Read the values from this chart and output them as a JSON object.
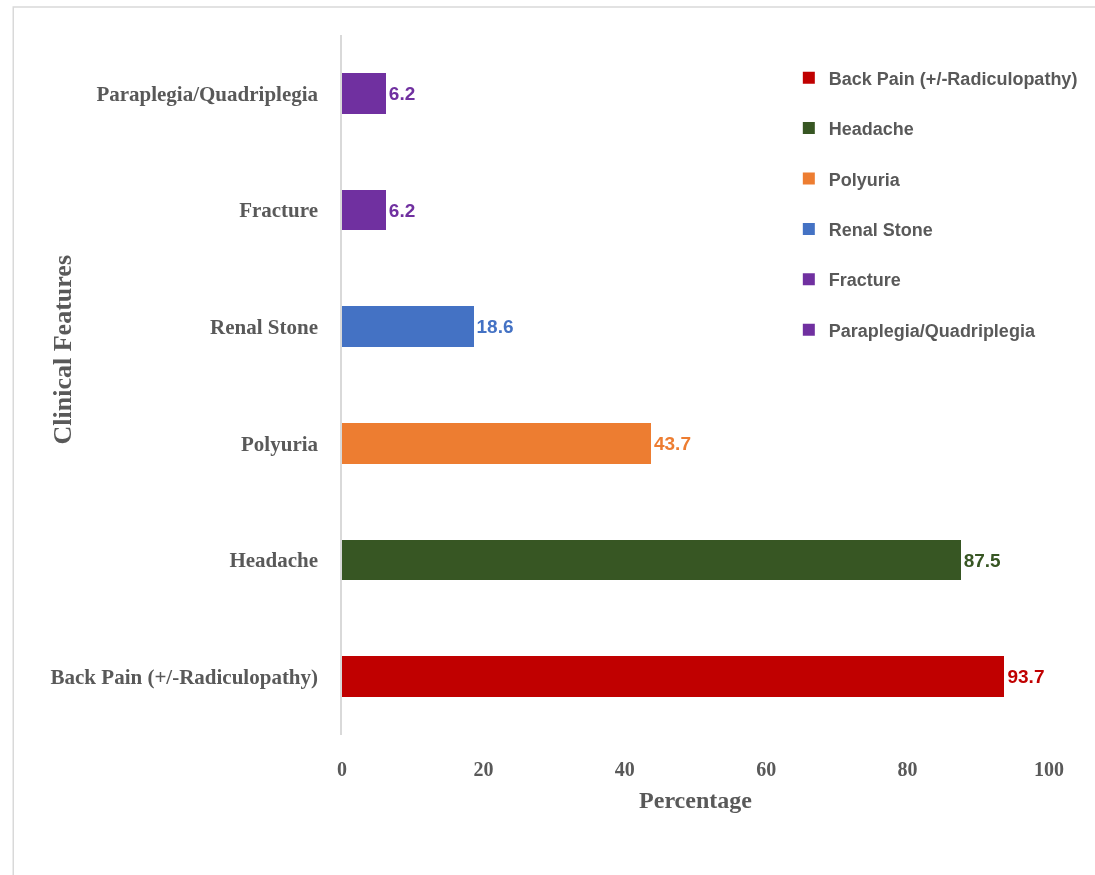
{
  "chart_data": {
    "type": "bar",
    "orientation": "horizontal",
    "stacked": true,
    "xlabel": "Percentage",
    "ylabel": "Clinical Features",
    "categories": [
      "Paraplegia/Quadriplegia",
      "Fracture",
      "Renal Stone",
      "Polyuria",
      "Headache",
      "Back Pain (+/-Radiculopathy)"
    ],
    "series": [
      {
        "name": "Back Pain (+/-Radiculopathy)",
        "color": "#c00000",
        "values": [
          null,
          null,
          null,
          null,
          null,
          93.7
        ]
      },
      {
        "name": "Headache",
        "color": "#375623",
        "values": [
          null,
          null,
          null,
          null,
          87.5,
          null
        ]
      },
      {
        "name": "Polyuria",
        "color": "#ed7d31",
        "values": [
          null,
          null,
          null,
          43.7,
          null,
          null
        ]
      },
      {
        "name": "Renal Stone",
        "color": "#4472c4",
        "values": [
          null,
          null,
          18.6,
          null,
          null,
          null
        ]
      },
      {
        "name": "Fracture",
        "color": "#7030a0",
        "values": [
          null,
          6.2,
          null,
          null,
          null,
          null
        ]
      },
      {
        "name": "Paraplegia/Quadriplegia",
        "color": "#7030a0",
        "values": [
          6.2,
          null,
          null,
          null,
          null,
          null
        ]
      }
    ],
    "xlim": [
      0,
      100
    ],
    "xticks": [
      0,
      20,
      40,
      60,
      80,
      100
    ],
    "data_labels": true,
    "legend": "top right"
  }
}
